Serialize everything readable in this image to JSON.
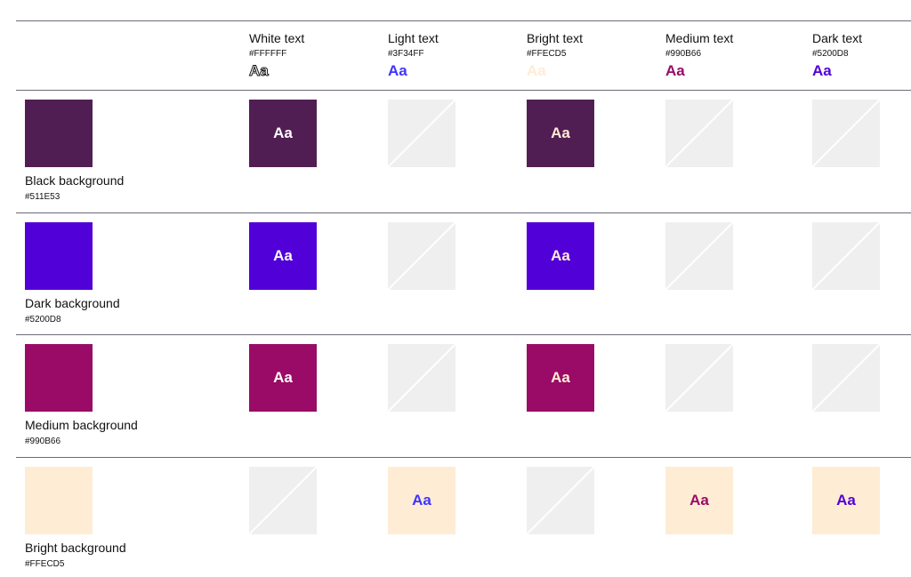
{
  "columns": [
    {
      "label": "White text",
      "hex": "#FFFFFF",
      "sample": "Aa",
      "color": "#FFFFFF"
    },
    {
      "label": "Light text",
      "hex": "#3F34FF",
      "sample": "Aa",
      "color": "#3F34FF"
    },
    {
      "label": "Bright text",
      "hex": "#FFECD5",
      "sample": "Aa",
      "color": "#FFECD5"
    },
    {
      "label": "Medium text",
      "hex": "#990B66",
      "sample": "Aa",
      "color": "#990B66"
    },
    {
      "label": "Dark text",
      "hex": "#5200D8",
      "sample": "Aa",
      "color": "#5200D8"
    }
  ],
  "rows": [
    {
      "label": "Black background",
      "hex": "#511E53",
      "color": "#511E53",
      "allowed": [
        true,
        false,
        true,
        false,
        false
      ]
    },
    {
      "label": "Dark background",
      "hex": "#5200D8",
      "color": "#5200D8",
      "allowed": [
        true,
        false,
        true,
        false,
        false
      ]
    },
    {
      "label": "Medium background",
      "hex": "#990B66",
      "color": "#990B66",
      "allowed": [
        true,
        false,
        true,
        false,
        false
      ]
    },
    {
      "label": "Bright background",
      "hex": "#FFECD5",
      "color": "#FFECD5",
      "allowed": [
        false,
        true,
        false,
        true,
        true
      ]
    }
  ],
  "sample_text": "Aa"
}
